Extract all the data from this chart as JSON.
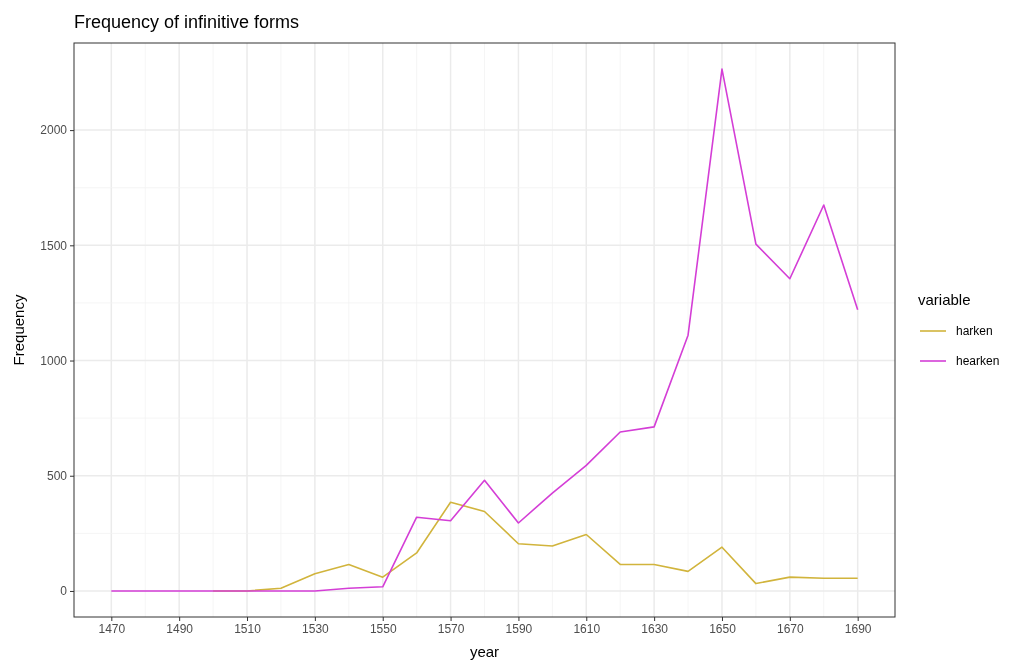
{
  "chart_data": {
    "type": "line",
    "title": "Frequency of infinitive forms",
    "xlabel": "year",
    "ylabel": "Frequency",
    "legend_title": "variable",
    "legend": "right",
    "grid": true,
    "x": [
      1470,
      1480,
      1490,
      1500,
      1510,
      1520,
      1530,
      1540,
      1550,
      1560,
      1570,
      1580,
      1590,
      1600,
      1610,
      1620,
      1630,
      1640,
      1650,
      1660,
      1670,
      1680,
      1690
    ],
    "xlim": [
      1459,
      1701
    ],
    "xticks": [
      1470,
      1490,
      1510,
      1530,
      1550,
      1570,
      1590,
      1610,
      1630,
      1650,
      1670,
      1690
    ],
    "ylim": [
      -113,
      2378
    ],
    "yticks": [
      0,
      500,
      1000,
      1500,
      2000
    ],
    "series": [
      {
        "name": "harken",
        "color": "#d1b43c",
        "values": [
          null,
          null,
          null,
          0,
          0,
          12,
          75,
          115,
          60,
          165,
          385,
          345,
          205,
          195,
          245,
          115,
          115,
          85,
          190,
          32,
          60,
          55,
          55
        ]
      },
      {
        "name": "hearken",
        "color": "#d43ed6",
        "values": [
          0,
          0,
          0,
          0,
          0,
          0,
          0,
          12,
          18,
          320,
          305,
          480,
          295,
          425,
          545,
          690,
          712,
          1110,
          2265,
          1505,
          1355,
          1675,
          1220
        ]
      }
    ]
  }
}
